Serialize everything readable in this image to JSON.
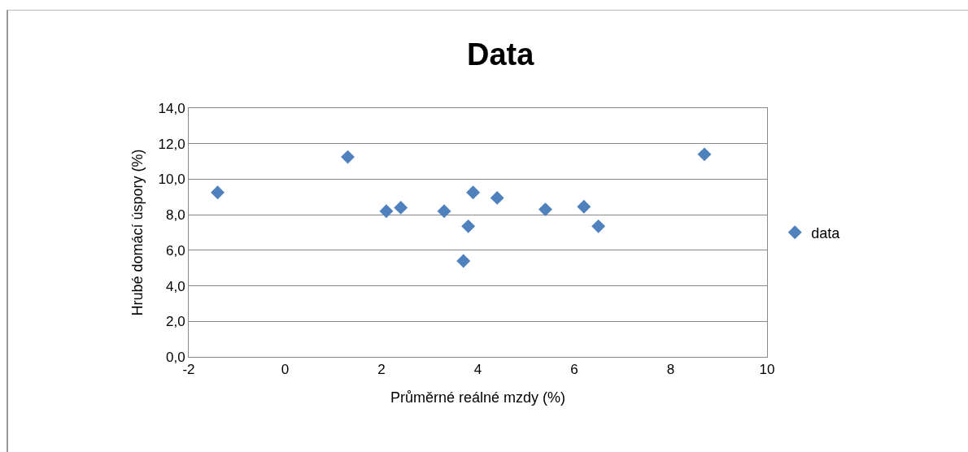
{
  "chart_data": {
    "type": "scatter",
    "title": "Data",
    "xlabel": "Průměrné reálné mzdy (%)",
    "ylabel": "Hrubé domácí úspory (%)",
    "x": [
      -1.4,
      1.3,
      2.1,
      2.4,
      3.3,
      3.7,
      3.8,
      3.9,
      4.4,
      5.4,
      6.2,
      6.5,
      8.7
    ],
    "series": [
      {
        "name": "data",
        "color": "#4f81bd",
        "values": [
          9.25,
          11.25,
          8.2,
          8.4,
          8.2,
          5.4,
          7.35,
          9.25,
          8.95,
          8.3,
          8.45,
          7.35,
          11.4
        ]
      }
    ],
    "xlim": [
      -2,
      10
    ],
    "xticks": [
      -2,
      0,
      2,
      4,
      6,
      8,
      10
    ],
    "ylim": [
      0,
      14
    ],
    "yticks": [
      {
        "value": 0,
        "label": "0,0"
      },
      {
        "value": 2,
        "label": "2,0"
      },
      {
        "value": 4,
        "label": "4,0"
      },
      {
        "value": 6,
        "label": "6,0"
      },
      {
        "value": 8,
        "label": "8,0"
      },
      {
        "value": 10,
        "label": "10,0"
      },
      {
        "value": 12,
        "label": "12,0"
      },
      {
        "value": 14,
        "label": "14,0"
      }
    ],
    "grid": "y",
    "legend": "right",
    "marker": "diamond"
  }
}
